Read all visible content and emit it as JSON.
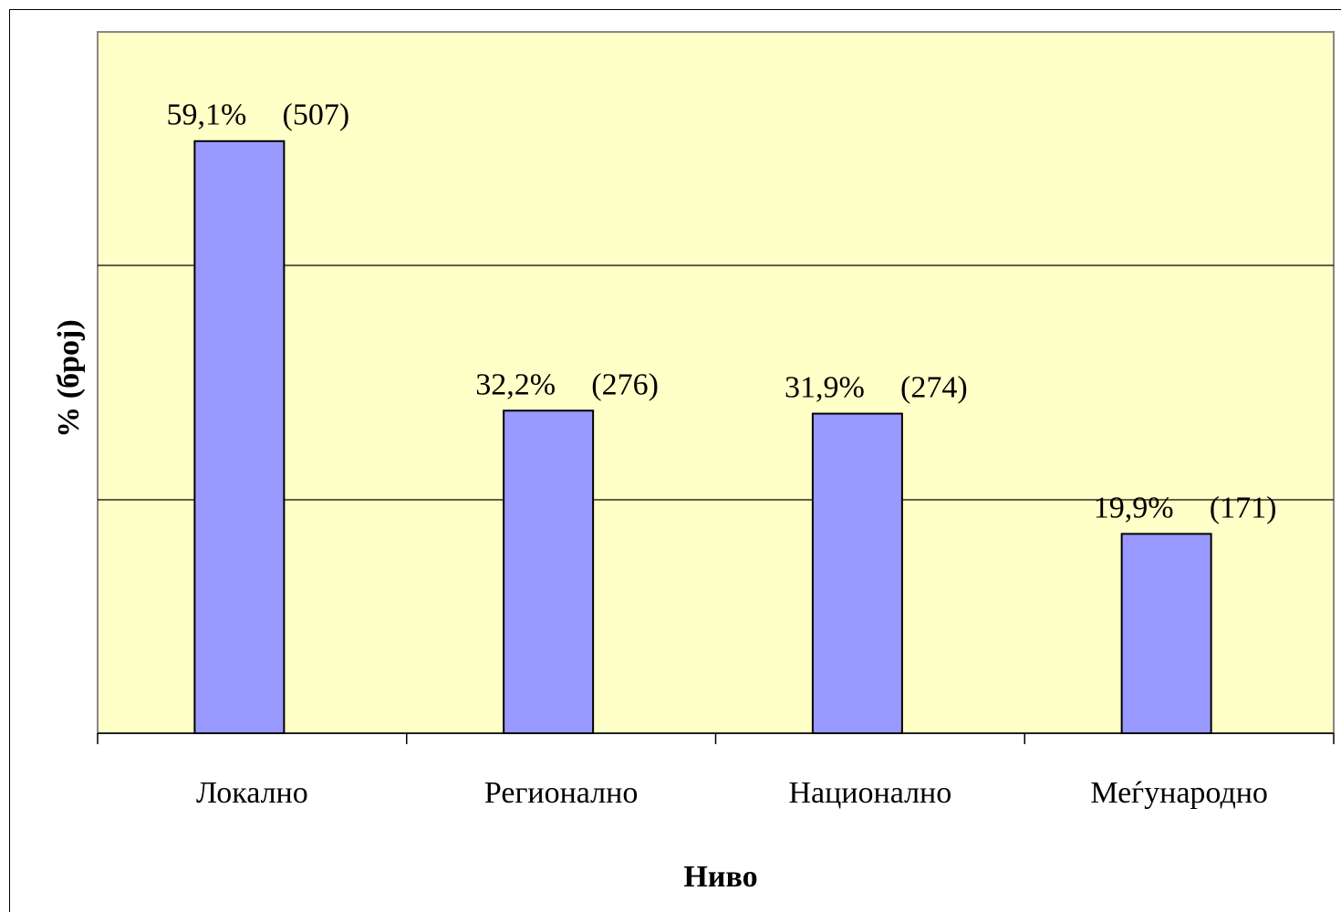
{
  "chart_data": {
    "type": "bar",
    "title": "",
    "xlabel": "Ниво",
    "ylabel": "% (број)",
    "categories": [
      "Локално",
      "Регионално",
      "Национално",
      "Меѓународно"
    ],
    "series": [
      {
        "values": [
          59.1,
          32.2,
          31.9,
          19.9
        ],
        "counts": [
          507,
          276,
          274,
          171
        ],
        "percent_labels": [
          "59,1%",
          "32,2%",
          "31,9%",
          "19,9%"
        ],
        "count_labels": [
          "(507)",
          "(276)",
          "(274)",
          "(171)"
        ]
      }
    ],
    "ylim": [
      0,
      70
    ],
    "gridlines": [
      23.3,
      46.7
    ],
    "grid": true,
    "y_tick_labels_shown": false,
    "legend": "none",
    "colors": {
      "plot_background": "#ffffc8",
      "bar_fill": "#9999ff",
      "bar_stroke": "#000000",
      "gridline": "#000000"
    }
  }
}
